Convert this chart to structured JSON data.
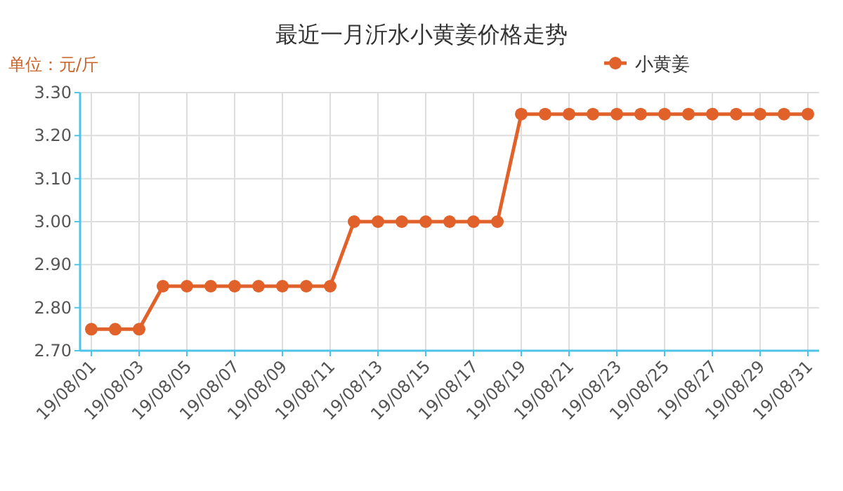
{
  "chart_data": {
    "type": "line",
    "title": "最近一月沂水小黄姜价格走势",
    "ylabel": "单位：元/斤",
    "categories": [
      "19/08/01",
      null,
      "19/08/03",
      null,
      "19/08/05",
      null,
      "19/08/07",
      null,
      "19/08/09",
      null,
      "19/08/11",
      null,
      "19/08/13",
      null,
      "19/08/15",
      null,
      "19/08/17",
      null,
      "19/08/19",
      null,
      "19/08/21",
      null,
      "19/08/23",
      null,
      "19/08/25",
      null,
      "19/08/27",
      null,
      "19/08/29",
      null,
      "19/08/31"
    ],
    "series": [
      {
        "name": "小黄姜",
        "color": "#e0622a",
        "values": [
          2.75,
          2.75,
          2.75,
          2.85,
          2.85,
          2.85,
          2.85,
          2.85,
          2.85,
          2.85,
          2.85,
          3.0,
          3.0,
          3.0,
          3.0,
          3.0,
          3.0,
          3.0,
          3.25,
          3.25,
          3.25,
          3.25,
          3.25,
          3.25,
          3.25,
          3.25,
          3.25,
          3.25,
          3.25,
          3.25,
          3.25
        ]
      }
    ],
    "ylim": [
      2.7,
      3.3
    ],
    "yticks": [
      {
        "value": 2.7,
        "label": "2.70"
      },
      {
        "value": 2.8,
        "label": "2.80"
      },
      {
        "value": 2.9,
        "label": "2.90"
      },
      {
        "value": 3.0,
        "label": "3.00"
      },
      {
        "value": 3.1,
        "label": "3.10"
      },
      {
        "value": 3.2,
        "label": "3.20"
      },
      {
        "value": 3.3,
        "label": "3.30"
      }
    ],
    "grid": true,
    "legend": "top right",
    "marker": "circle",
    "line_style": "solid"
  }
}
